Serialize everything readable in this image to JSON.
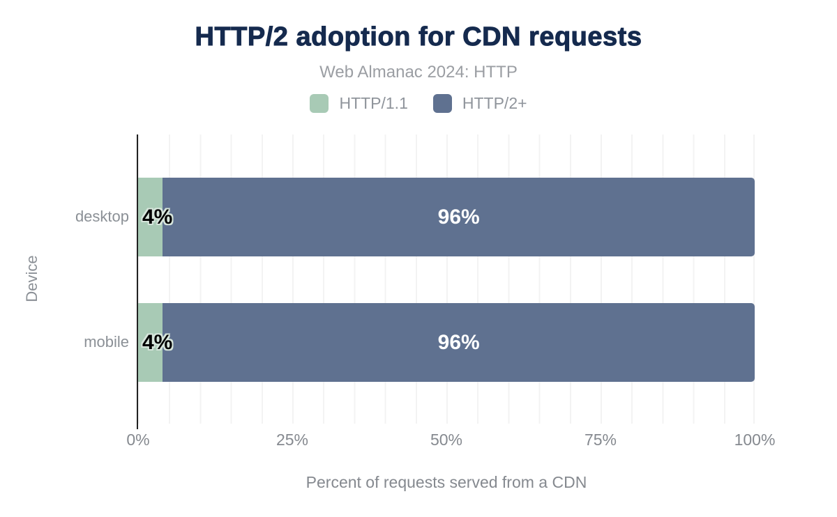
{
  "header": {
    "title": "HTTP/2 adoption for CDN requests",
    "subtitle": "Web Almanac 2024: HTTP"
  },
  "legend": {
    "items": [
      {
        "label": "HTTP/1.1",
        "color": "#a8cab5"
      },
      {
        "label": "HTTP/2+",
        "color": "#5f7190"
      }
    ]
  },
  "colors": {
    "title_text": "#152a4e",
    "muted_text": "#8b9096",
    "axis_line": "#212121",
    "gridline": "#f3f3f3",
    "value_label_dark": "#000000",
    "value_label_light": "#ffffff",
    "value_label_halo": "#d6e5db"
  },
  "chart_data": {
    "type": "bar",
    "orientation": "horizontal",
    "stacked": true,
    "title": "HTTP/2 adoption for CDN requests",
    "subtitle": "Web Almanac 2024: HTTP",
    "categories": [
      "desktop",
      "mobile"
    ],
    "series": [
      {
        "name": "HTTP/1.1",
        "color": "#a8cab5",
        "values": [
          4,
          4
        ],
        "labels": [
          "4%",
          "4%"
        ]
      },
      {
        "name": "HTTP/2+",
        "color": "#5f7190",
        "values": [
          96,
          96
        ],
        "labels": [
          "96%",
          "96%"
        ]
      }
    ],
    "xlabel": "Percent of requests served from a CDN",
    "ylabel": "Device",
    "xlim": [
      0,
      100
    ],
    "xticks": [
      "0%",
      "25%",
      "50%",
      "75%",
      "100%"
    ],
    "grid": "vertical minor gridlines every 5%",
    "legend_position": "top"
  }
}
